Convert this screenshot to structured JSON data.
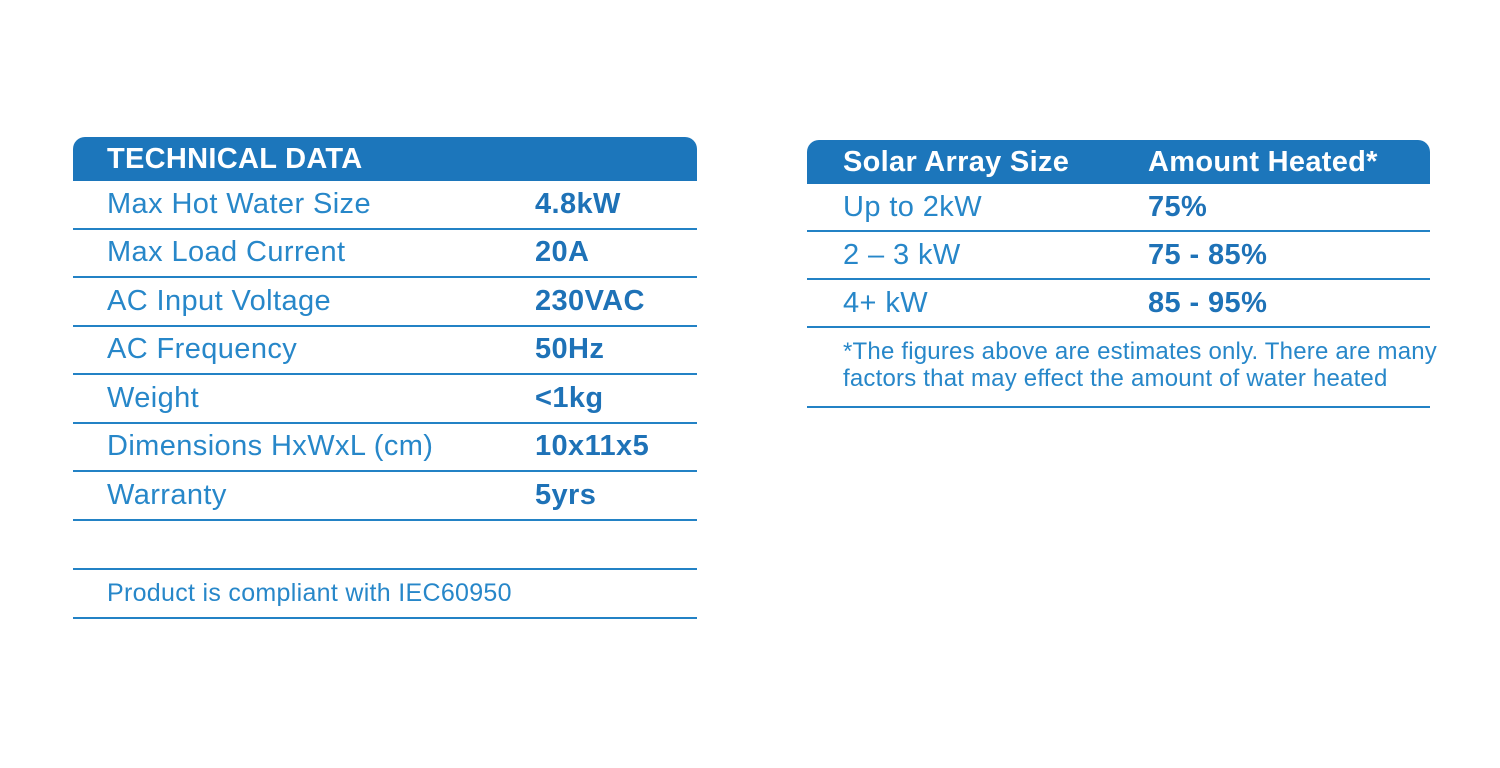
{
  "colors": {
    "brand_blue_header": "#1C76BB",
    "label_blue": "#2787C9",
    "value_blue": "#1E72B7",
    "line_blue": "#2382C5",
    "header_text": "#FFFFFF",
    "background": "#FFFFFF"
  },
  "technical_table": {
    "title": "TECHNICAL DATA",
    "rows": [
      {
        "label": "Max Hot Water Size",
        "value": "4.8kW"
      },
      {
        "label": "Max Load Current",
        "value": "20A"
      },
      {
        "label": "AC Input Voltage",
        "value": "230VAC"
      },
      {
        "label": "AC Frequency",
        "value": "50Hz"
      },
      {
        "label": "Weight",
        "value": "<1kg"
      },
      {
        "label": "Dimensions HxWxL (cm)",
        "value": "10x11x5"
      },
      {
        "label": "Warranty",
        "value": "5yrs"
      }
    ],
    "compliance_note": "Product is compliant with IEC60950"
  },
  "solar_table": {
    "col1_header": "Solar Array Size",
    "col2_header": "Amount Heated*",
    "rows": [
      {
        "size": "Up to 2kW",
        "amount": "75%"
      },
      {
        "size": "2 – 3 kW",
        "amount": "75 - 85%"
      },
      {
        "size": "4+ kW",
        "amount": "85 - 95%"
      }
    ],
    "footnote": "*The figures above are estimates only. There are many factors that may effect the amount of water heated",
    "footnote_lines": [
      "*The figures above are estimates only. There are many",
      "factors that may effect the amount of water heated"
    ]
  }
}
